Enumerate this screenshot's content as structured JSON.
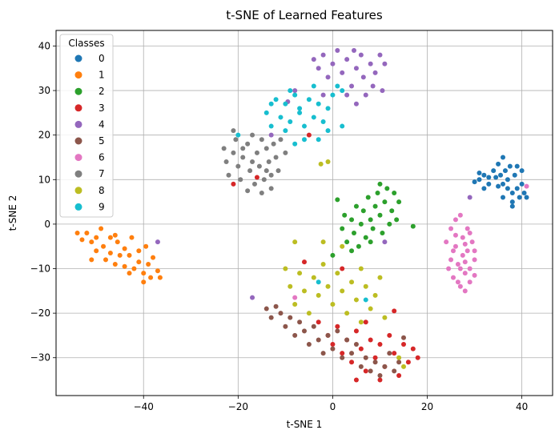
{
  "chart_data": {
    "type": "scatter",
    "title": "t-SNE of Learned Features",
    "xlabel": "t-SNE 1",
    "ylabel": "t-SNE 2",
    "xlim": [
      -58.5,
      46.5
    ],
    "ylim": [
      -38.5,
      43.5
    ],
    "xticks": [
      -40,
      -20,
      0,
      20,
      40
    ],
    "yticks": [
      -30,
      -20,
      -10,
      0,
      10,
      20,
      30,
      40
    ],
    "grid": true,
    "legend": {
      "title": "Classes",
      "placement": "top-left"
    },
    "series": [
      {
        "name": "0",
        "color": "#1f77b4",
        "points": [
          [
            30,
            9.5
          ],
          [
            31,
            10
          ],
          [
            32,
            11
          ],
          [
            33,
            9
          ],
          [
            34,
            12
          ],
          [
            34.5,
            10.5
          ],
          [
            35,
            13.5
          ],
          [
            35.5,
            11
          ],
          [
            36,
            9
          ],
          [
            36,
            15
          ],
          [
            36.5,
            12
          ],
          [
            37,
            10
          ],
          [
            37.5,
            13
          ],
          [
            38,
            7
          ],
          [
            38.5,
            11
          ],
          [
            38,
            5
          ],
          [
            39,
            8
          ],
          [
            39.5,
            6
          ],
          [
            40,
            9
          ],
          [
            40.5,
            7
          ],
          [
            40,
            12
          ],
          [
            41,
            6
          ],
          [
            38,
            4
          ],
          [
            37,
            8
          ],
          [
            35,
            8.5
          ],
          [
            33,
            10.5
          ],
          [
            32,
            8
          ],
          [
            31,
            11.5
          ],
          [
            39,
            13
          ],
          [
            36,
            6
          ]
        ]
      },
      {
        "name": "1",
        "color": "#ff7f0e",
        "points": [
          [
            -54,
            -2
          ],
          [
            -53,
            -3.5
          ],
          [
            -52,
            -2
          ],
          [
            -51,
            -4
          ],
          [
            -50,
            -3
          ],
          [
            -50,
            -6
          ],
          [
            -49,
            -1
          ],
          [
            -48.5,
            -5
          ],
          [
            -48,
            -8
          ],
          [
            -47,
            -3
          ],
          [
            -47,
            -6.5
          ],
          [
            -46,
            -9
          ],
          [
            -45.5,
            -4
          ],
          [
            -45,
            -7
          ],
          [
            -44,
            -5.5
          ],
          [
            -44,
            -9.5
          ],
          [
            -43,
            -7
          ],
          [
            -42.5,
            -3
          ],
          [
            -42,
            -10
          ],
          [
            -41,
            -6
          ],
          [
            -41,
            -8.5
          ],
          [
            -40,
            -11
          ],
          [
            -39.5,
            -5
          ],
          [
            -39,
            -9
          ],
          [
            -38.5,
            -12
          ],
          [
            -38,
            -7.5
          ],
          [
            -37,
            -10.5
          ],
          [
            -36.5,
            -12
          ],
          [
            -40,
            -13
          ],
          [
            -46,
            -2.5
          ],
          [
            -51,
            -8
          ],
          [
            -43,
            -11
          ]
        ]
      },
      {
        "name": "2",
        "color": "#2ca02c",
        "points": [
          [
            0,
            -7
          ],
          [
            1,
            5.5
          ],
          [
            2,
            -1
          ],
          [
            2.5,
            2
          ],
          [
            3,
            -4
          ],
          [
            4,
            1
          ],
          [
            4.5,
            -2
          ],
          [
            5,
            4
          ],
          [
            5.5,
            -5
          ],
          [
            6,
            0
          ],
          [
            6.5,
            3
          ],
          [
            7,
            -3
          ],
          [
            7.5,
            6
          ],
          [
            8,
            1
          ],
          [
            8.5,
            -1
          ],
          [
            9,
            4
          ],
          [
            9.5,
            7
          ],
          [
            10,
            2
          ],
          [
            10.5,
            -2
          ],
          [
            11,
            5
          ],
          [
            11.5,
            8
          ],
          [
            12,
            0
          ],
          [
            12.5,
            3
          ],
          [
            13,
            7
          ],
          [
            13.5,
            1
          ],
          [
            14,
            5
          ],
          [
            10,
            9
          ],
          [
            8,
            -4
          ],
          [
            4,
            -6
          ],
          [
            17,
            -0.5
          ]
        ]
      },
      {
        "name": "3",
        "color": "#d62728",
        "points": [
          [
            -3,
            -22
          ],
          [
            -1,
            -25
          ],
          [
            0,
            -27
          ],
          [
            1,
            -23
          ],
          [
            2,
            -29
          ],
          [
            3,
            -26
          ],
          [
            4,
            -31
          ],
          [
            5,
            -24
          ],
          [
            6,
            -28
          ],
          [
            7,
            -33
          ],
          [
            8,
            -26
          ],
          [
            9,
            -30
          ],
          [
            10,
            -27
          ],
          [
            11,
            -32
          ],
          [
            12,
            -25
          ],
          [
            13,
            -29
          ],
          [
            14,
            -34
          ],
          [
            15,
            -27
          ],
          [
            16,
            -31
          ],
          [
            17,
            -28
          ],
          [
            18,
            -30
          ],
          [
            13,
            -19.5
          ],
          [
            7,
            -22
          ],
          [
            5,
            -35
          ],
          [
            10,
            -35
          ],
          [
            -6,
            -8.5
          ],
          [
            2,
            -10
          ],
          [
            -5,
            20
          ],
          [
            -16,
            10.5
          ],
          [
            -21,
            9
          ]
        ]
      },
      {
        "name": "4",
        "color": "#9467bd",
        "points": [
          [
            -4,
            37
          ],
          [
            -3,
            35
          ],
          [
            -2,
            38
          ],
          [
            -1,
            33
          ],
          [
            0,
            36
          ],
          [
            1,
            39
          ],
          [
            2,
            34
          ],
          [
            3,
            37
          ],
          [
            4,
            31
          ],
          [
            4.5,
            39
          ],
          [
            5,
            35
          ],
          [
            6,
            38
          ],
          [
            6.5,
            33
          ],
          [
            7,
            29
          ],
          [
            8,
            36
          ],
          [
            8.5,
            31
          ],
          [
            9,
            34
          ],
          [
            10,
            38
          ],
          [
            10.5,
            30
          ],
          [
            11,
            36
          ],
          [
            5,
            27
          ],
          [
            3,
            29
          ],
          [
            -2,
            29
          ],
          [
            -8,
            30
          ],
          [
            -13,
            20
          ],
          [
            -17,
            -16.5
          ],
          [
            -9.5,
            27.5
          ],
          [
            11,
            -4
          ],
          [
            -37,
            -4
          ],
          [
            29,
            6
          ]
        ]
      },
      {
        "name": "5",
        "color": "#8c564b",
        "points": [
          [
            -14,
            -19
          ],
          [
            -13,
            -21
          ],
          [
            -12,
            -18.5
          ],
          [
            -11,
            -20
          ],
          [
            -10,
            -23
          ],
          [
            -9,
            -21
          ],
          [
            -8,
            -25
          ],
          [
            -7,
            -22
          ],
          [
            -6,
            -24
          ],
          [
            -5,
            -27
          ],
          [
            -4,
            -23
          ],
          [
            -3,
            -26
          ],
          [
            -2,
            -29
          ],
          [
            -1,
            -25
          ],
          [
            0,
            -28
          ],
          [
            1,
            -24
          ],
          [
            2,
            -30
          ],
          [
            3,
            -26
          ],
          [
            4,
            -29
          ],
          [
            5,
            -27
          ],
          [
            6,
            -32
          ],
          [
            7,
            -30
          ],
          [
            8,
            -33
          ],
          [
            9,
            -31
          ],
          [
            10,
            -34
          ],
          [
            11,
            -32
          ],
          [
            12,
            -29
          ],
          [
            13,
            -33
          ],
          [
            14,
            -31
          ],
          [
            15,
            -25.5
          ]
        ]
      },
      {
        "name": "6",
        "color": "#e377c2",
        "points": [
          [
            24,
            -4
          ],
          [
            25,
            -1
          ],
          [
            25,
            -8
          ],
          [
            25.5,
            -12
          ],
          [
            26,
            1
          ],
          [
            26,
            -5
          ],
          [
            26.5,
            -9
          ],
          [
            27,
            -14
          ],
          [
            27,
            2
          ],
          [
            27.5,
            -3
          ],
          [
            27.5,
            -7
          ],
          [
            28,
            -11
          ],
          [
            28,
            -15
          ],
          [
            28.5,
            -1
          ],
          [
            28.5,
            -6
          ],
          [
            29,
            -10
          ],
          [
            29,
            -13
          ],
          [
            29.5,
            -4
          ],
          [
            30,
            -8
          ],
          [
            30,
            -11.5
          ],
          [
            26,
            -2.5
          ],
          [
            25.5,
            -6
          ],
          [
            27,
            -10
          ],
          [
            28,
            -4.5
          ],
          [
            26.5,
            -13
          ],
          [
            24.5,
            -10
          ],
          [
            29,
            -2
          ],
          [
            28,
            -8.5
          ],
          [
            30,
            -6
          ],
          [
            41,
            8.5
          ],
          [
            -8,
            -16.5
          ]
        ]
      },
      {
        "name": "7",
        "color": "#7f7f7f",
        "points": [
          [
            -23,
            17
          ],
          [
            -22.5,
            14
          ],
          [
            -22,
            11
          ],
          [
            -21,
            16
          ],
          [
            -20.5,
            19
          ],
          [
            -20,
            13
          ],
          [
            -19.5,
            10
          ],
          [
            -19,
            15
          ],
          [
            -18,
            18
          ],
          [
            -17.5,
            12
          ],
          [
            -17,
            20
          ],
          [
            -16.5,
            9
          ],
          [
            -16,
            16
          ],
          [
            -15.5,
            13
          ],
          [
            -15,
            19
          ],
          [
            -14.5,
            10
          ],
          [
            -14,
            17
          ],
          [
            -13.5,
            14
          ],
          [
            -13,
            11
          ],
          [
            -12.5,
            18
          ],
          [
            -12,
            15
          ],
          [
            -11.5,
            12
          ],
          [
            -11,
            19
          ],
          [
            -18,
            7.5
          ],
          [
            -15,
            7
          ],
          [
            -13,
            8
          ],
          [
            -21,
            21
          ],
          [
            -10,
            16
          ],
          [
            -17,
            14
          ],
          [
            -19,
            17
          ],
          [
            -14,
            12
          ]
        ]
      },
      {
        "name": "8",
        "color": "#bcbd22",
        "points": [
          [
            -10,
            -10
          ],
          [
            -9,
            -14
          ],
          [
            -8,
            -18
          ],
          [
            -7,
            -11
          ],
          [
            -6,
            -15
          ],
          [
            -5,
            -20
          ],
          [
            -4,
            -12
          ],
          [
            -3,
            -16
          ],
          [
            -2,
            -9
          ],
          [
            -1,
            -14
          ],
          [
            0,
            -18
          ],
          [
            1,
            -11
          ],
          [
            2,
            -15
          ],
          [
            3,
            -20
          ],
          [
            4,
            -13
          ],
          [
            5,
            -17
          ],
          [
            6,
            -10
          ],
          [
            7,
            -14
          ],
          [
            8,
            -19
          ],
          [
            9,
            -16
          ],
          [
            10,
            -12
          ],
          [
            11,
            -21
          ],
          [
            -8,
            -4
          ],
          [
            -2,
            -4
          ],
          [
            2,
            -5
          ],
          [
            6,
            -22
          ],
          [
            14,
            -30
          ],
          [
            15,
            -32
          ],
          [
            -1,
            14
          ],
          [
            -2.5,
            13.5
          ]
        ]
      },
      {
        "name": "9",
        "color": "#17becf",
        "points": [
          [
            -14,
            25
          ],
          [
            -13,
            22
          ],
          [
            -12,
            28
          ],
          [
            -11,
            24
          ],
          [
            -10,
            27
          ],
          [
            -9,
            23
          ],
          [
            -8,
            29
          ],
          [
            -7,
            25
          ],
          [
            -6,
            22
          ],
          [
            -5,
            28
          ],
          [
            -4,
            24
          ],
          [
            -3,
            27
          ],
          [
            -2,
            23
          ],
          [
            -1,
            26
          ],
          [
            0,
            29
          ],
          [
            1,
            31
          ],
          [
            -6,
            19
          ],
          [
            -8,
            18
          ],
          [
            -3,
            19
          ],
          [
            -13,
            27
          ],
          [
            2,
            30
          ],
          [
            -10,
            21
          ],
          [
            -4,
            31
          ],
          [
            -1,
            21
          ],
          [
            -7,
            26
          ],
          [
            -9,
            30
          ],
          [
            -20,
            20
          ],
          [
            7,
            -17
          ],
          [
            -3,
            -13
          ],
          [
            2,
            22
          ]
        ]
      }
    ]
  }
}
